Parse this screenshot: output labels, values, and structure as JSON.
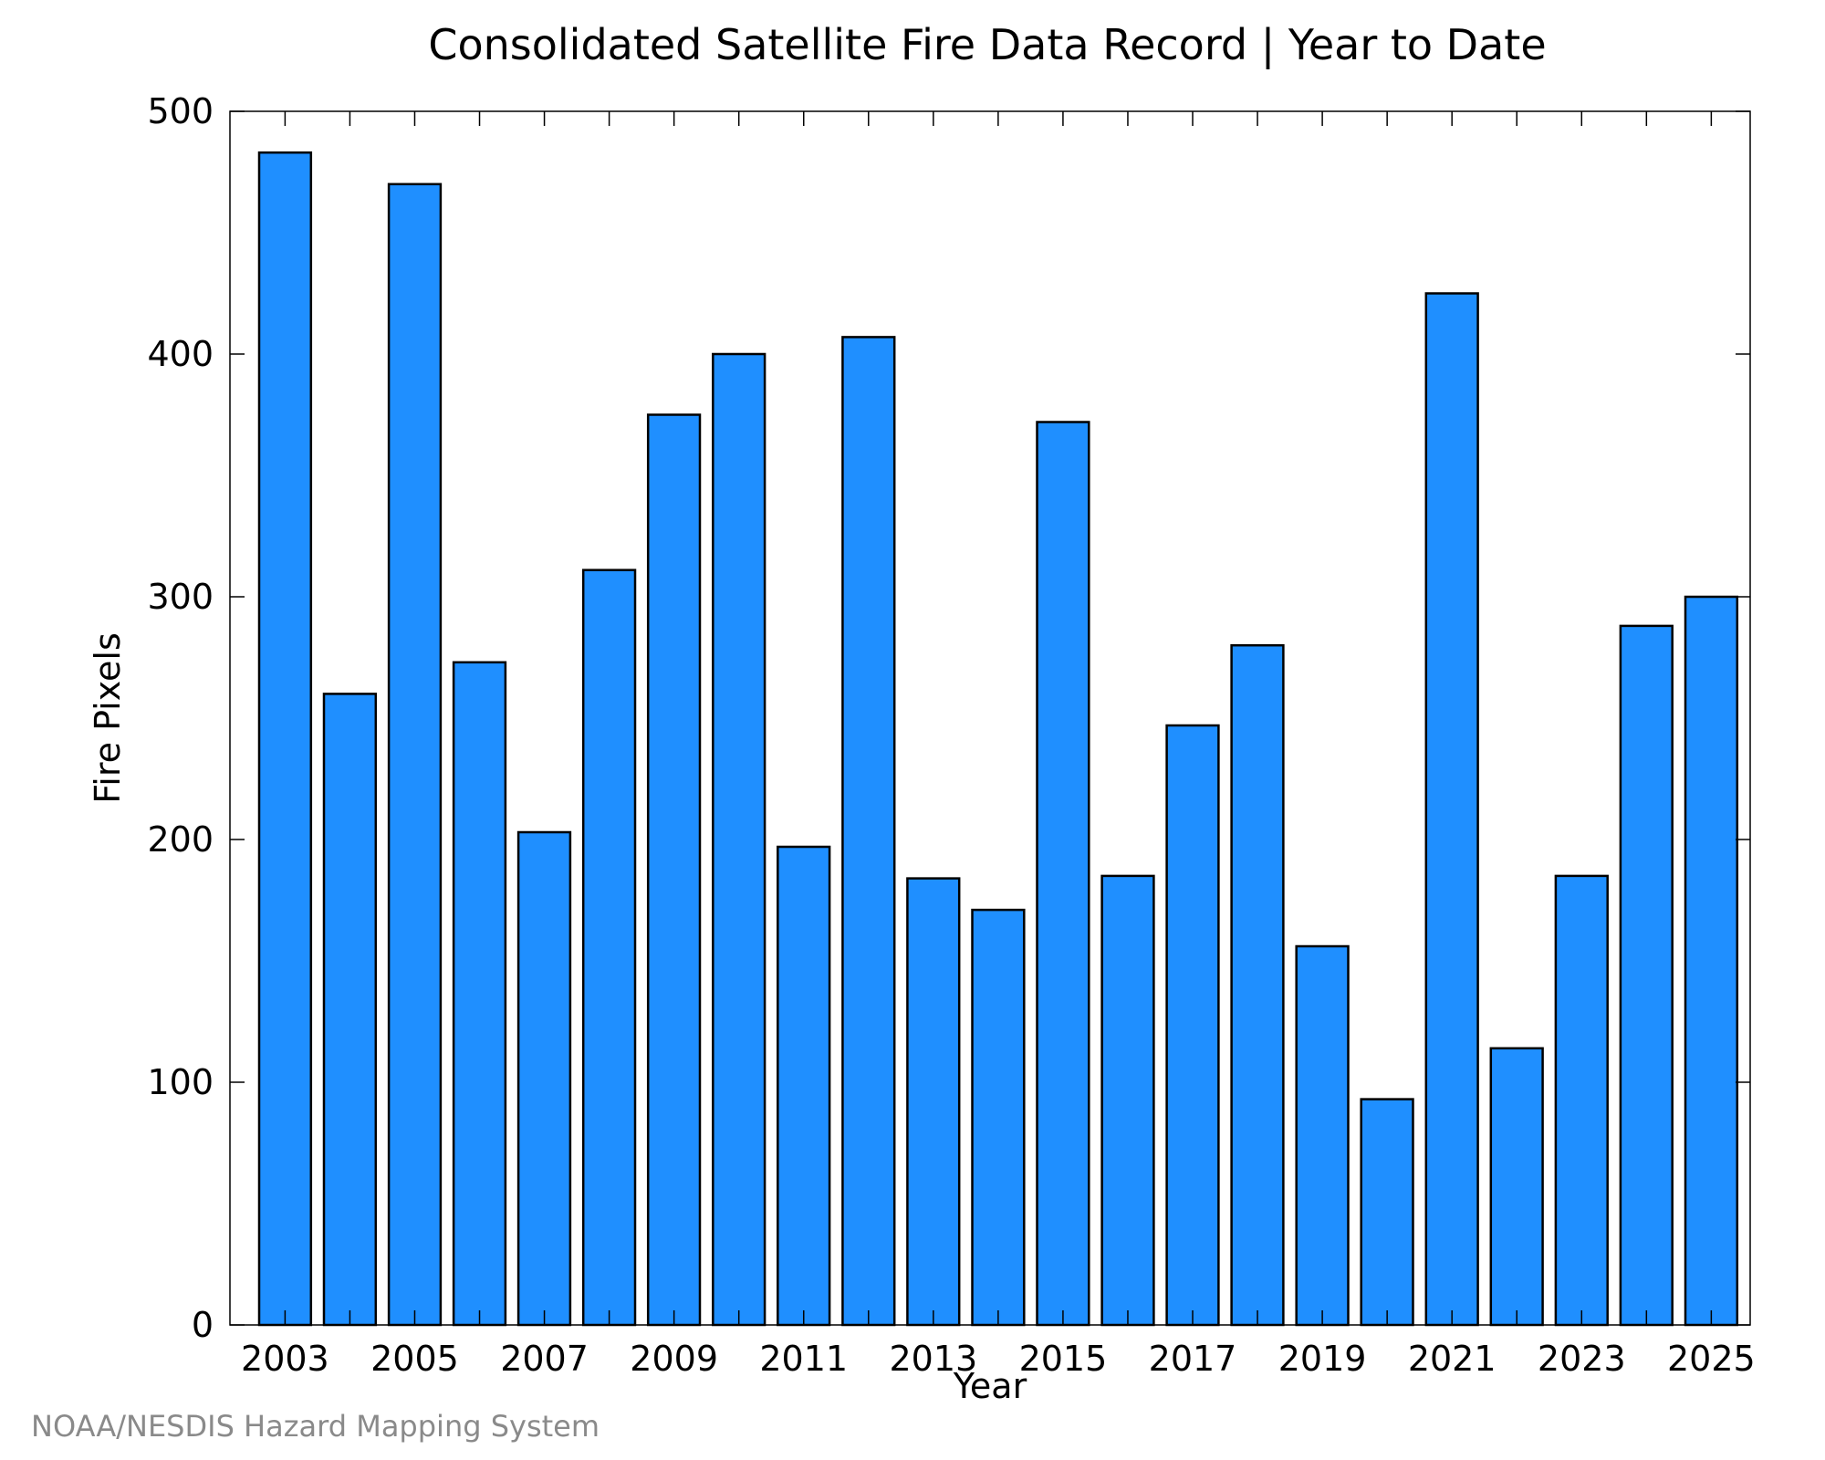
{
  "chart_data": {
    "type": "bar",
    "title": "Consolidated Satellite Fire Data Record | Year to Date",
    "xlabel": "Year",
    "ylabel": "Fire Pixels",
    "categories": [
      2003,
      2004,
      2005,
      2006,
      2007,
      2008,
      2009,
      2010,
      2011,
      2012,
      2013,
      2014,
      2015,
      2016,
      2017,
      2018,
      2019,
      2020,
      2021,
      2022,
      2023,
      2024,
      2025
    ],
    "values": [
      483,
      260,
      470,
      273,
      203,
      311,
      375,
      400,
      197,
      407,
      184,
      171,
      372,
      185,
      247,
      280,
      156,
      93,
      425,
      114,
      185,
      288,
      300
    ],
    "xticks": [
      "2003",
      "2005",
      "2007",
      "2009",
      "2011",
      "2013",
      "2015",
      "2017",
      "2019",
      "2021",
      "2023",
      "2025"
    ],
    "yticks": [
      "0",
      "100",
      "200",
      "300",
      "400",
      "500"
    ],
    "ylim": [
      0,
      500
    ],
    "grid": false,
    "bar_color": "#1f8fff",
    "bar_edge_color": "#000000"
  },
  "footer": {
    "credit": "NOAA/NESDIS Hazard Mapping System"
  }
}
